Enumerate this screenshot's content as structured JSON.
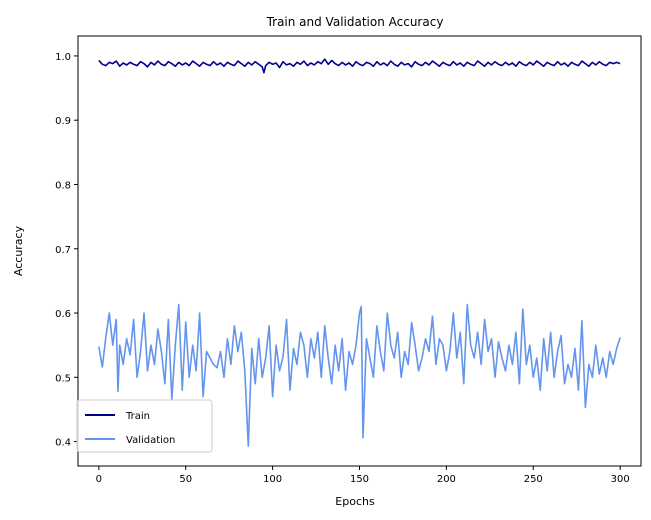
{
  "chart_data": {
    "type": "line",
    "title": "Train and Validation Accuracy",
    "xlabel": "Epochs",
    "ylabel": "Accuracy",
    "xlim": [
      -12,
      312
    ],
    "ylim": [
      0.362,
      1.031
    ],
    "xticks": [
      0,
      50,
      100,
      150,
      200,
      250,
      300
    ],
    "xtick_labels": [
      "0",
      "50",
      "100",
      "150",
      "200",
      "250",
      "300"
    ],
    "yticks": [
      0.4,
      0.5,
      0.6,
      0.7,
      0.8,
      0.9,
      1.0
    ],
    "ytick_labels": [
      "0.4",
      "0.5",
      "0.6",
      "0.7",
      "0.8",
      "0.9",
      "1.0"
    ],
    "grid": false,
    "legend_position": "lower-left",
    "series": [
      {
        "name": "Train",
        "color": "#00008b",
        "x": [
          0,
          2,
          4,
          6,
          8,
          10,
          12,
          14,
          16,
          18,
          20,
          22,
          24,
          26,
          28,
          30,
          32,
          34,
          36,
          38,
          40,
          42,
          44,
          46,
          48,
          50,
          52,
          54,
          56,
          58,
          60,
          62,
          64,
          66,
          68,
          70,
          72,
          74,
          76,
          78,
          80,
          82,
          84,
          86,
          88,
          90,
          92,
          94,
          95,
          96,
          98,
          100,
          102,
          104,
          106,
          108,
          110,
          112,
          114,
          116,
          118,
          120,
          122,
          124,
          126,
          128,
          130,
          132,
          134,
          136,
          138,
          140,
          142,
          144,
          146,
          148,
          150,
          152,
          154,
          156,
          158,
          160,
          162,
          164,
          166,
          168,
          170,
          172,
          174,
          176,
          178,
          180,
          182,
          184,
          186,
          188,
          190,
          192,
          194,
          196,
          198,
          200,
          202,
          204,
          206,
          208,
          210,
          212,
          214,
          216,
          218,
          220,
          222,
          224,
          226,
          228,
          230,
          232,
          234,
          236,
          238,
          240,
          242,
          244,
          246,
          248,
          250,
          252,
          254,
          256,
          258,
          260,
          262,
          264,
          266,
          268,
          270,
          272,
          274,
          276,
          278,
          280,
          282,
          284,
          286,
          288,
          290,
          292,
          294,
          296,
          298,
          300
        ],
        "values": [
          0.993,
          0.987,
          0.985,
          0.99,
          0.988,
          0.992,
          0.984,
          0.989,
          0.986,
          0.99,
          0.987,
          0.985,
          0.991,
          0.988,
          0.983,
          0.99,
          0.986,
          0.992,
          0.987,
          0.985,
          0.991,
          0.988,
          0.984,
          0.99,
          0.986,
          0.989,
          0.985,
          0.992,
          0.988,
          0.984,
          0.99,
          0.987,
          0.985,
          0.991,
          0.986,
          0.989,
          0.984,
          0.99,
          0.987,
          0.985,
          0.992,
          0.988,
          0.984,
          0.99,
          0.986,
          0.991,
          0.987,
          0.983,
          0.974,
          0.985,
          0.99,
          0.987,
          0.989,
          0.982,
          0.991,
          0.986,
          0.988,
          0.984,
          0.99,
          0.987,
          0.992,
          0.985,
          0.989,
          0.986,
          0.991,
          0.988,
          0.995,
          0.987,
          0.993,
          0.988,
          0.985,
          0.99,
          0.986,
          0.989,
          0.984,
          0.991,
          0.987,
          0.985,
          0.99,
          0.988,
          0.984,
          0.991,
          0.986,
          0.989,
          0.985,
          0.992,
          0.987,
          0.984,
          0.99,
          0.986,
          0.988,
          0.983,
          0.991,
          0.987,
          0.985,
          0.99,
          0.986,
          0.992,
          0.988,
          0.984,
          0.99,
          0.987,
          0.985,
          0.991,
          0.986,
          0.989,
          0.984,
          0.99,
          0.987,
          0.985,
          0.992,
          0.988,
          0.984,
          0.99,
          0.986,
          0.991,
          0.987,
          0.985,
          0.99,
          0.986,
          0.989,
          0.984,
          0.991,
          0.987,
          0.985,
          0.99,
          0.986,
          0.992,
          0.988,
          0.984,
          0.99,
          0.987,
          0.985,
          0.991,
          0.986,
          0.989,
          0.984,
          0.99,
          0.987,
          0.985,
          0.992,
          0.988,
          0.984,
          0.99,
          0.986,
          0.991,
          0.987,
          0.985,
          0.99,
          0.988,
          0.99,
          0.988
        ]
      },
      {
        "name": "Validation",
        "color": "#6495ed",
        "x": [
          0,
          2,
          4,
          6,
          8,
          10,
          11,
          12,
          14,
          16,
          18,
          20,
          22,
          24,
          26,
          28,
          30,
          32,
          34,
          36,
          38,
          40,
          42,
          44,
          46,
          48,
          50,
          52,
          54,
          56,
          58,
          60,
          62,
          64,
          66,
          68,
          70,
          72,
          74,
          76,
          78,
          80,
          82,
          84,
          86,
          88,
          90,
          92,
          94,
          96,
          98,
          100,
          102,
          104,
          106,
          108,
          110,
          112,
          114,
          116,
          118,
          120,
          122,
          124,
          126,
          128,
          130,
          132,
          134,
          136,
          138,
          140,
          142,
          144,
          146,
          148,
          150,
          151,
          152,
          154,
          156,
          158,
          160,
          162,
          164,
          166,
          168,
          170,
          172,
          174,
          176,
          178,
          180,
          182,
          184,
          186,
          188,
          190,
          192,
          194,
          196,
          198,
          200,
          202,
          204,
          206,
          208,
          210,
          212,
          214,
          216,
          218,
          220,
          222,
          224,
          226,
          228,
          230,
          232,
          234,
          236,
          238,
          240,
          242,
          244,
          246,
          248,
          250,
          252,
          254,
          256,
          258,
          260,
          262,
          264,
          266,
          268,
          270,
          272,
          274,
          276,
          278,
          280,
          282,
          284,
          286,
          288,
          290,
          292,
          294,
          296,
          298,
          300
        ],
        "values": [
          0.548,
          0.516,
          0.562,
          0.6,
          0.55,
          0.59,
          0.478,
          0.55,
          0.52,
          0.56,
          0.535,
          0.59,
          0.5,
          0.54,
          0.6,
          0.51,
          0.55,
          0.52,
          0.575,
          0.54,
          0.49,
          0.59,
          0.465,
          0.55,
          0.613,
          0.48,
          0.586,
          0.5,
          0.55,
          0.51,
          0.6,
          0.47,
          0.54,
          0.53,
          0.52,
          0.515,
          0.54,
          0.5,
          0.56,
          0.52,
          0.58,
          0.54,
          0.57,
          0.51,
          0.393,
          0.545,
          0.49,
          0.56,
          0.5,
          0.53,
          0.58,
          0.47,
          0.55,
          0.51,
          0.532,
          0.59,
          0.48,
          0.545,
          0.52,
          0.57,
          0.55,
          0.5,
          0.56,
          0.53,
          0.57,
          0.5,
          0.58,
          0.53,
          0.49,
          0.55,
          0.51,
          0.56,
          0.48,
          0.54,
          0.52,
          0.55,
          0.6,
          0.61,
          0.406,
          0.56,
          0.53,
          0.5,
          0.58,
          0.54,
          0.51,
          0.6,
          0.55,
          0.53,
          0.57,
          0.5,
          0.54,
          0.52,
          0.585,
          0.55,
          0.51,
          0.53,
          0.56,
          0.54,
          0.595,
          0.52,
          0.56,
          0.55,
          0.51,
          0.54,
          0.6,
          0.53,
          0.57,
          0.49,
          0.613,
          0.55,
          0.53,
          0.57,
          0.52,
          0.59,
          0.54,
          0.56,
          0.5,
          0.555,
          0.53,
          0.51,
          0.55,
          0.52,
          0.57,
          0.49,
          0.606,
          0.52,
          0.55,
          0.5,
          0.53,
          0.48,
          0.56,
          0.51,
          0.57,
          0.5,
          0.54,
          0.565,
          0.49,
          0.52,
          0.5,
          0.545,
          0.48,
          0.588,
          0.453,
          0.52,
          0.5,
          0.55,
          0.505,
          0.53,
          0.5,
          0.54,
          0.52,
          0.545,
          0.562
        ]
      }
    ]
  }
}
